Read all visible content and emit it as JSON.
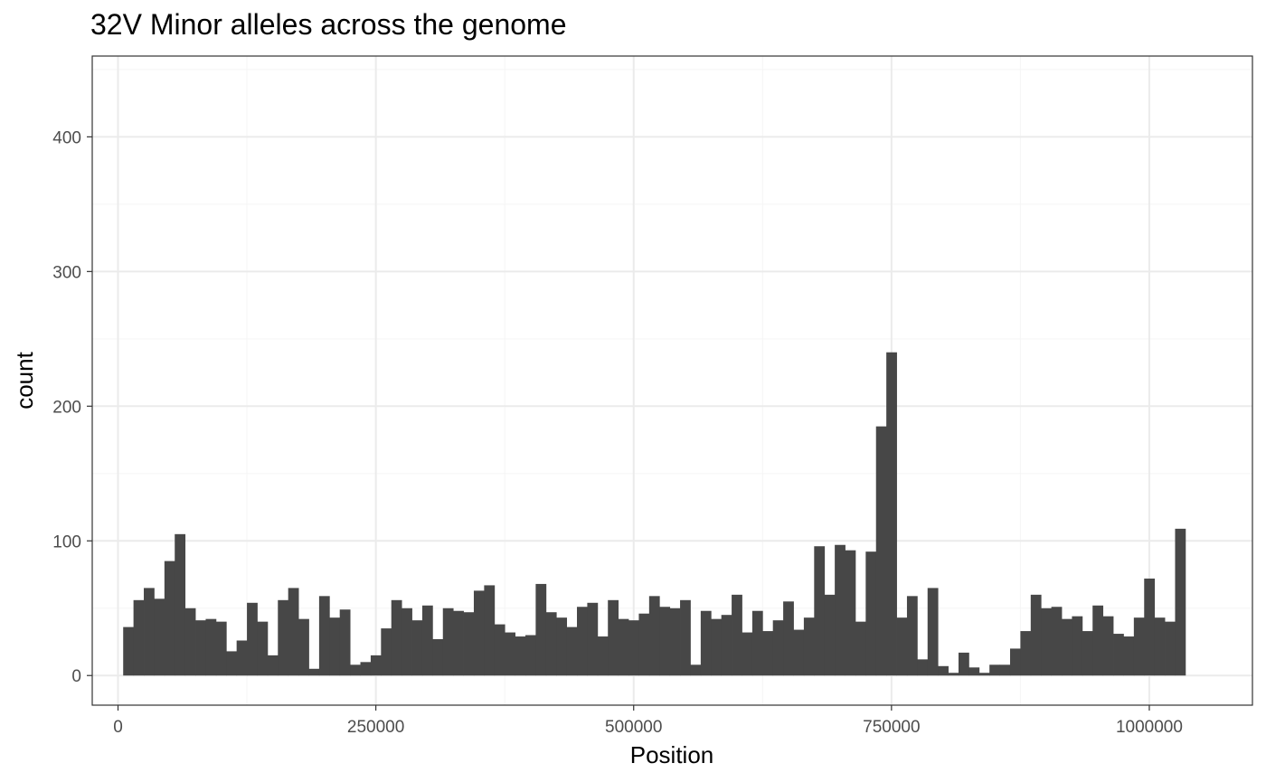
{
  "chart_data": {
    "type": "bar",
    "title": "32V Minor alleles across the genome",
    "xlabel": "Position",
    "ylabel": "count",
    "xlim": [
      -25000,
      1100000
    ],
    "ylim": [
      -22,
      460
    ],
    "x_ticks": [
      0,
      250000,
      500000,
      750000,
      1000000
    ],
    "y_ticks": [
      0,
      100,
      200,
      300,
      400
    ],
    "grid": true,
    "legend": "none",
    "bin_width": 10000,
    "bins_start": 5000,
    "values": [
      36,
      56,
      65,
      57,
      85,
      105,
      50,
      41,
      42,
      40,
      18,
      26,
      54,
      40,
      15,
      56,
      65,
      42,
      5,
      59,
      43,
      49,
      8,
      10,
      15,
      35,
      56,
      50,
      41,
      52,
      27,
      50,
      48,
      47,
      63,
      67,
      38,
      32,
      29,
      30,
      68,
      47,
      43,
      36,
      51,
      54,
      29,
      56,
      42,
      41,
      46,
      59,
      51,
      50,
      56,
      8,
      48,
      42,
      45,
      60,
      32,
      48,
      33,
      41,
      55,
      34,
      43,
      96,
      60,
      97,
      93,
      40,
      92,
      185,
      240,
      43,
      59,
      12,
      65,
      7,
      2,
      17,
      6,
      2,
      8,
      8,
      20,
      33,
      60,
      50,
      51,
      42,
      44,
      33,
      52,
      44,
      31,
      29,
      43,
      72,
      43,
      40,
      109
    ],
    "colors": {
      "bar": "#474747",
      "grid_major": "#ebebeb",
      "grid_minor": "#f5f5f5",
      "panel_border": "#333333"
    }
  }
}
